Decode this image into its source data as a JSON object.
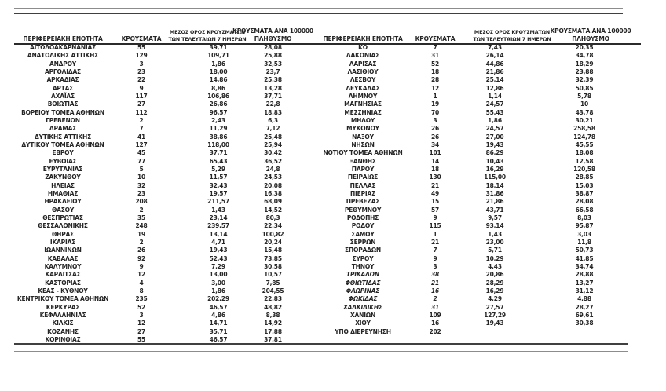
{
  "colors": {
    "background": "#ffffff",
    "text": "#262626",
    "rule_dark": "#404040",
    "rule_light": "#8c8c8c"
  },
  "headers": {
    "region": "ΠΕΡΙΦΕΡΕΙΑΚΗ ΕΝΟΤΗΤΑ",
    "cases": "ΚΡΟΥΣΜΑΤΑ",
    "avg7_line1": "ΜΕΣΟΣ ΟΡΟΣ ΚΡΟΥΣΜΑΤΩΝ",
    "avg7_line2": "ΤΩΝ ΤΕΛΕΥΤΑΙΩΝ 7 ΗΜΕΡΩΝ",
    "per100k_line1": "ΚΡΟΥΣΜΑΤΑ ΑΝΑ 100000",
    "per100k_line2": "ΠΛΗΘΥΣΜΟ"
  },
  "tables": {
    "left": {
      "italic_rows": [],
      "rows": [
        [
          "ΑΙΤΩΛΟΑΚΑΡΝΑΝΙΑΣ",
          "55",
          "39,71",
          "28,08"
        ],
        [
          "ΑΝΑΤΟΛΙΚΗΣ ΑΤΤΙΚΗΣ",
          "129",
          "109,71",
          "25,88"
        ],
        [
          "ΑΝΔΡΟΥ",
          "3",
          "1,86",
          "32,53"
        ],
        [
          "ΑΡΓΟΛΙΔΑΣ",
          "23",
          "18,00",
          "23,7"
        ],
        [
          "ΑΡΚΑΔΙΑΣ",
          "22",
          "14,86",
          "25,38"
        ],
        [
          "ΑΡΤΑΣ",
          "9",
          "8,86",
          "13,28"
        ],
        [
          "ΑΧΑΪΑΣ",
          "117",
          "106,86",
          "37,71"
        ],
        [
          "ΒΟΙΩΤΙΑΣ",
          "27",
          "26,86",
          "22,8"
        ],
        [
          "ΒΟΡΕΙΟΥ ΤΟΜΕΑ ΑΘΗΝΩΝ",
          "112",
          "96,57",
          "18,83"
        ],
        [
          "ΓΡΕΒΕΝΩΝ",
          "2",
          "2,43",
          "6,3"
        ],
        [
          "ΔΡΑΜΑΣ",
          "7",
          "11,29",
          "7,12"
        ],
        [
          "ΔΥΤΙΚΗΣ ΑΤΤΙΚΗΣ",
          "41",
          "38,86",
          "25,48"
        ],
        [
          "ΔΥΤΙΚΟΥ ΤΟΜΕΑ ΑΘΗΝΩΝ",
          "127",
          "118,00",
          "25,94"
        ],
        [
          "ΕΒΡΟΥ",
          "45",
          "37,71",
          "30,42"
        ],
        [
          "ΕΥΒΟΙΑΣ",
          "77",
          "65,43",
          "36,52"
        ],
        [
          "ΕΥΡΥΤΑΝΙΑΣ",
          "5",
          "5,29",
          "24,8"
        ],
        [
          "ΖΑΚΥΝΘΟΥ",
          "10",
          "11,57",
          "24,53"
        ],
        [
          "ΗΛΕΙΑΣ",
          "32",
          "32,43",
          "20,08"
        ],
        [
          "ΗΜΑΘΙΑΣ",
          "23",
          "19,57",
          "16,38"
        ],
        [
          "ΗΡΑΚΛΕΙΟΥ",
          "208",
          "211,57",
          "68,09"
        ],
        [
          "ΘΑΣΟΥ",
          "2",
          "1,43",
          "14,52"
        ],
        [
          "ΘΕΣΠΡΩΤΙΑΣ",
          "35",
          "23,14",
          "80,3"
        ],
        [
          "ΘΕΣΣΑΛΟΝΙΚΗΣ",
          "248",
          "239,57",
          "22,34"
        ],
        [
          "ΘΗΡΑΣ",
          "19",
          "13,14",
          "100,82"
        ],
        [
          "ΙΚΑΡΙΑΣ",
          "2",
          "4,71",
          "20,24"
        ],
        [
          "ΙΩΑΝΝΙΝΩΝ",
          "26",
          "19,43",
          "15,48"
        ],
        [
          "ΚΑΒΑΛΑΣ",
          "92",
          "52,43",
          "73,85"
        ],
        [
          "ΚΑΛΥΜΝΟΥ",
          "9",
          "7,29",
          "30,58"
        ],
        [
          "ΚΑΡΔΙΤΣΑΣ",
          "12",
          "13,00",
          "10,57"
        ],
        [
          "ΚΑΣΤΟΡΙΑΣ",
          "4",
          "3,00",
          "7,85"
        ],
        [
          "ΚΕΑΣ - ΚΥΘΝΟΥ",
          "8",
          "1,86",
          "204,55"
        ],
        [
          "ΚΕΝΤΡΙΚΟΥ ΤΟΜΕΑ ΑΘΗΝΩΝ",
          "235",
          "202,29",
          "22,83"
        ],
        [
          "ΚΕΡΚΥΡΑΣ",
          "52",
          "46,57",
          "48,82"
        ],
        [
          "ΚΕΦΑΛΛΗΝΙΑΣ",
          "3",
          "4,86",
          "8,38"
        ],
        [
          "ΚΙΛΚΙΣ",
          "12",
          "14,71",
          "14,92"
        ],
        [
          "ΚΟΖΑΝΗΣ",
          "27",
          "35,71",
          "17,88"
        ],
        [
          "ΚΟΡΙΝΘΙΑΣ",
          "55",
          "46,57",
          "37,81"
        ]
      ]
    },
    "right": {
      "italic_rows": [
        28,
        29,
        30,
        31,
        32
      ],
      "rows": [
        [
          "ΚΩ",
          "7",
          "7,43",
          "20,35"
        ],
        [
          "ΛΑΚΩΝΙΑΣ",
          "31",
          "26,14",
          "34,78"
        ],
        [
          "ΛΑΡΙΣΑΣ",
          "52",
          "44,86",
          "18,29"
        ],
        [
          "ΛΑΣΙΘΙΟΥ",
          "18",
          "21,86",
          "23,88"
        ],
        [
          "ΛΕΣΒΟΥ",
          "28",
          "25,14",
          "32,39"
        ],
        [
          "ΛΕΥΚΑΔΑΣ",
          "12",
          "12,86",
          "50,85"
        ],
        [
          "ΛΗΜΝΟΥ",
          "1",
          "1,14",
          "5,78"
        ],
        [
          "ΜΑΓΝΗΣΙΑΣ",
          "19",
          "24,57",
          "10"
        ],
        [
          "ΜΕΣΣΗΝΙΑΣ",
          "70",
          "55,43",
          "43,78"
        ],
        [
          "ΜΗΛΟΥ",
          "3",
          "1,86",
          "30,21"
        ],
        [
          "ΜΥΚΟΝΟΥ",
          "26",
          "24,57",
          "258,58"
        ],
        [
          "ΝΑΞΟΥ",
          "26",
          "27,00",
          "124,78"
        ],
        [
          "ΝΗΣΩΝ",
          "34",
          "19,43",
          "45,55"
        ],
        [
          "ΝΟΤΙΟΥ ΤΟΜΕΑ ΑΘΗΝΩΝ",
          "101",
          "86,29",
          "18,08"
        ],
        [
          "ΞΑΝΘΗΣ",
          "14",
          "10,43",
          "12,58"
        ],
        [
          "ΠΑΡΟΥ",
          "18",
          "16,29",
          "120,58"
        ],
        [
          "ΠΕΙΡΑΙΩΣ",
          "130",
          "115,00",
          "28,85"
        ],
        [
          "ΠΕΛΛΑΣ",
          "21",
          "18,14",
          "15,03"
        ],
        [
          "ΠΙΕΡΙΑΣ",
          "49",
          "31,86",
          "38,87"
        ],
        [
          "ΠΡΕΒΕΖΑΣ",
          "15",
          "21,86",
          "28,08"
        ],
        [
          "ΡΕΘΥΜΝΟΥ",
          "57",
          "43,71",
          "66,58"
        ],
        [
          "ΡΟΔΟΠΗΣ",
          "9",
          "9,57",
          "8,03"
        ],
        [
          "ΡΟΔΟΥ",
          "115",
          "93,14",
          "95,87"
        ],
        [
          "ΣΑΜΟΥ",
          "1",
          "1,43",
          "3,03"
        ],
        [
          "ΣΕΡΡΩΝ",
          "21",
          "23,00",
          "11,8"
        ],
        [
          "ΣΠΟΡΑΔΩΝ",
          "7",
          "5,71",
          "50,73"
        ],
        [
          "ΣΥΡΟΥ",
          "9",
          "10,29",
          "41,85"
        ],
        [
          "ΤΗΝΟΥ",
          "3",
          "4,43",
          "34,74"
        ],
        [
          "ΤΡΙΚΑΛΩΝ",
          "38",
          "20,86",
          "28,88"
        ],
        [
          "ΦΘΙΩΤΙΔΑΣ",
          "21",
          "28,29",
          "13,27"
        ],
        [
          "ΦΛΩΡΙΝΑΣ",
          "16",
          "16,29",
          "31,12"
        ],
        [
          "ΦΩΚΙΔΑΣ",
          "2",
          "4,29",
          "4,88"
        ],
        [
          "ΧΑΛΚΙΔΙΚΗΣ",
          "31",
          "27,57",
          "28,27"
        ],
        [
          "ΧΑΝΙΩΝ",
          "109",
          "127,29",
          "69,61"
        ],
        [
          "ΧΙΟΥ",
          "16",
          "19,43",
          "30,38"
        ],
        [
          "ΥΠΟ ΔΙΕΡΕΥΝΗΣΗ",
          "202",
          "",
          ""
        ]
      ]
    }
  }
}
